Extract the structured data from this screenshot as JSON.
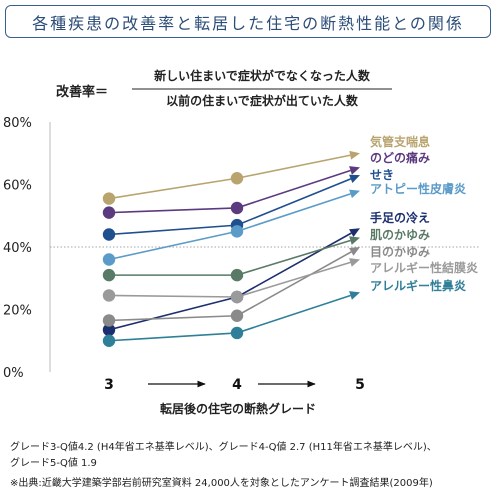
{
  "title": "各種疾患の改善率と転居した住宅の断熱性能との関係",
  "formula": {
    "label": "改善率＝",
    "numerator": "新しい住まいで症状がでなくなった人数",
    "denominator": "以前の住まいで症状が出ていた人数"
  },
  "chart_data": {
    "type": "line",
    "x": [
      "3",
      "4",
      "5"
    ],
    "xlabel": "転居後の住宅の断熱グレード",
    "ylabel": "",
    "ylim": [
      0,
      80
    ],
    "yticks": [
      "0%",
      "20%",
      "40%",
      "60%",
      "80%"
    ],
    "grid": "dotted line at 40%",
    "legend": "labels at line ends (right)",
    "series": [
      {
        "name": "気管支喘息",
        "values": [
          55.5,
          62,
          70
        ],
        "color": "#b9a46f"
      },
      {
        "name": "のどの痛み",
        "values": [
          51,
          52.5,
          65.5
        ],
        "color": "#5c3a80"
      },
      {
        "name": "せき",
        "values": [
          44,
          47,
          63
        ],
        "color": "#1f4f8f"
      },
      {
        "name": "アトピー性皮膚炎",
        "values": [
          36,
          45,
          58
        ],
        "color": "#5a9bc8"
      },
      {
        "name": "手足の冷え",
        "values": [
          13.5,
          24,
          46
        ],
        "color": "#1b2e6e"
      },
      {
        "name": "肌のかゆみ",
        "values": [
          31,
          31,
          43
        ],
        "color": "#587a66"
      },
      {
        "name": "目のかゆみ",
        "values": [
          16.5,
          18,
          40
        ],
        "color": "#8a8a8a"
      },
      {
        "name": "アレルギー性結膜炎",
        "values": [
          24.5,
          24,
          36
        ],
        "color": "#9a9a9a"
      },
      {
        "name": "アレルギー性鼻炎",
        "values": [
          10,
          12.5,
          25.5
        ],
        "color": "#2f7f99"
      }
    ]
  },
  "footnotes": [
    "グレード3-Q値4.2 (H4年省エネ基準レベル)、グレード4-Q値 2.7 (H11年省エネ基準レベル)、",
    "グレード5-Q値 1.9",
    "※出典:近畿大学建築学部岩前研究室資料 24,000人を対象としたアンケート調査結果(2009年)"
  ]
}
